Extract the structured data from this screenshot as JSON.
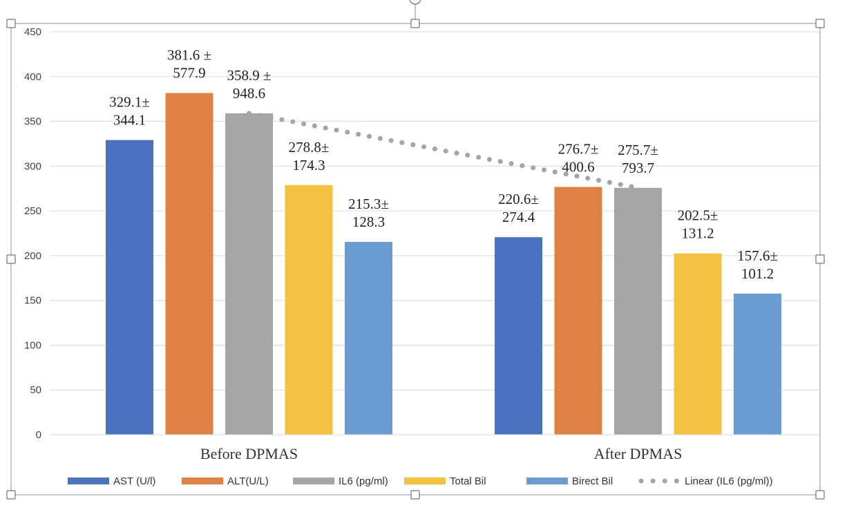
{
  "chart_data": {
    "type": "bar",
    "categories": [
      "Before DPMAS",
      "After DPMAS"
    ],
    "ylim": [
      0,
      450
    ],
    "yticks": [
      0,
      50,
      100,
      150,
      200,
      250,
      300,
      350,
      400,
      450
    ],
    "grid": true,
    "legend_position": "bottom",
    "series": [
      {
        "name": "AST (U/l)",
        "color": "#4C72BF",
        "values": [
          329.1,
          220.6
        ],
        "labels": [
          [
            "329.1±",
            "344.1"
          ],
          [
            "220.6±",
            "274.4"
          ]
        ]
      },
      {
        "name": "ALT(U/L)",
        "color": "#DD8244",
        "values": [
          381.6,
          276.7
        ],
        "labels": [
          [
            "381.6 ±",
            "577.9"
          ],
          [
            "276.7±",
            "400.6"
          ]
        ]
      },
      {
        "name": "IL6 (pg/ml)",
        "color": "#A5A5A5",
        "values": [
          358.9,
          275.7
        ],
        "labels": [
          [
            "358.9 ±",
            "948.6"
          ],
          [
            "275.7±",
            "793.7"
          ]
        ]
      },
      {
        "name": "Total Bil",
        "color": "#F4C142",
        "values": [
          278.8,
          202.5
        ],
        "labels": [
          [
            "278.8±",
            "174.3"
          ],
          [
            "202.5±",
            "131.2"
          ]
        ]
      },
      {
        "name": "Birect Bil",
        "color": "#6A9BD2",
        "values": [
          215.3,
          157.6
        ],
        "labels": [
          [
            "215.3±",
            "128.3"
          ],
          [
            "157.6±",
            "101.2"
          ]
        ]
      }
    ],
    "trendline": {
      "name": "Linear (IL6 (pg/ml))",
      "series": "IL6 (pg/ml)",
      "color": "#A5A5A5",
      "style": "dotted"
    }
  }
}
